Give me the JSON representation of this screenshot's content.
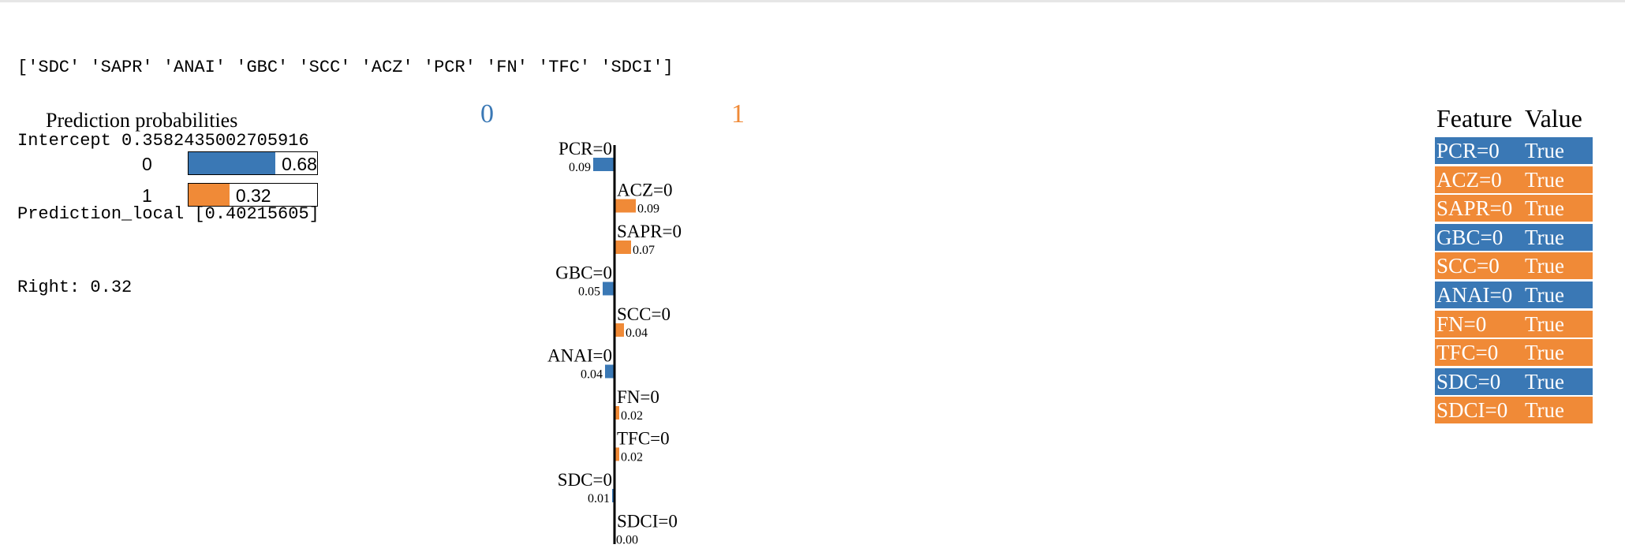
{
  "console": {
    "line1": "['SDC' 'SAPR' 'ANAI' 'GBC' 'SCC' 'ACZ' 'PCR' 'FN' 'TFC' 'SDCI']",
    "line2": "Intercept 0.3582435002705916",
    "line3": "Prediction_local [0.40215605]",
    "line4": "Right: 0.32"
  },
  "colors": {
    "class0": "#3a78b5",
    "class1": "#f08a37",
    "axis": "#000000"
  },
  "chart_data": [
    {
      "type": "bar",
      "title": "Prediction probabilities",
      "categories": [
        "0",
        "1"
      ],
      "values": [
        0.68,
        0.32
      ],
      "labels": [
        "0.68",
        "0.32"
      ],
      "xlim": [
        0,
        1
      ]
    },
    {
      "type": "bar",
      "title": "",
      "class_labels": [
        "0",
        "1"
      ],
      "features": [
        {
          "name": "PCR=0",
          "value": 0.09,
          "label": "0.09",
          "class": 0
        },
        {
          "name": "ACZ=0",
          "value": 0.09,
          "label": "0.09",
          "class": 1
        },
        {
          "name": "SAPR=0",
          "value": 0.07,
          "label": "0.07",
          "class": 1
        },
        {
          "name": "GBC=0",
          "value": 0.05,
          "label": "0.05",
          "class": 0
        },
        {
          "name": "SCC=0",
          "value": 0.04,
          "label": "0.04",
          "class": 1
        },
        {
          "name": "ANAI=0",
          "value": 0.04,
          "label": "0.04",
          "class": 0
        },
        {
          "name": "FN=0",
          "value": 0.02,
          "label": "0.02",
          "class": 1
        },
        {
          "name": "TFC=0",
          "value": 0.02,
          "label": "0.02",
          "class": 1
        },
        {
          "name": "SDC=0",
          "value": 0.01,
          "label": "0.01",
          "class": 0
        },
        {
          "name": "SDCI=0",
          "value": 0.0,
          "label": "0.00",
          "class": 1
        }
      ]
    },
    {
      "type": "table",
      "headers": [
        "Feature",
        "Value"
      ],
      "rows": [
        {
          "feature": "PCR=0",
          "value": "True",
          "class": 0
        },
        {
          "feature": "ACZ=0",
          "value": "True",
          "class": 1
        },
        {
          "feature": "SAPR=0",
          "value": "True",
          "class": 1
        },
        {
          "feature": "GBC=0",
          "value": "True",
          "class": 0
        },
        {
          "feature": "SCC=0",
          "value": "True",
          "class": 1
        },
        {
          "feature": "ANAI=0",
          "value": "True",
          "class": 0
        },
        {
          "feature": "FN=0",
          "value": "True",
          "class": 1
        },
        {
          "feature": "TFC=0",
          "value": "True",
          "class": 1
        },
        {
          "feature": "SDC=0",
          "value": "True",
          "class": 0
        },
        {
          "feature": "SDCI=0",
          "value": "True",
          "class": 1
        }
      ]
    }
  ]
}
